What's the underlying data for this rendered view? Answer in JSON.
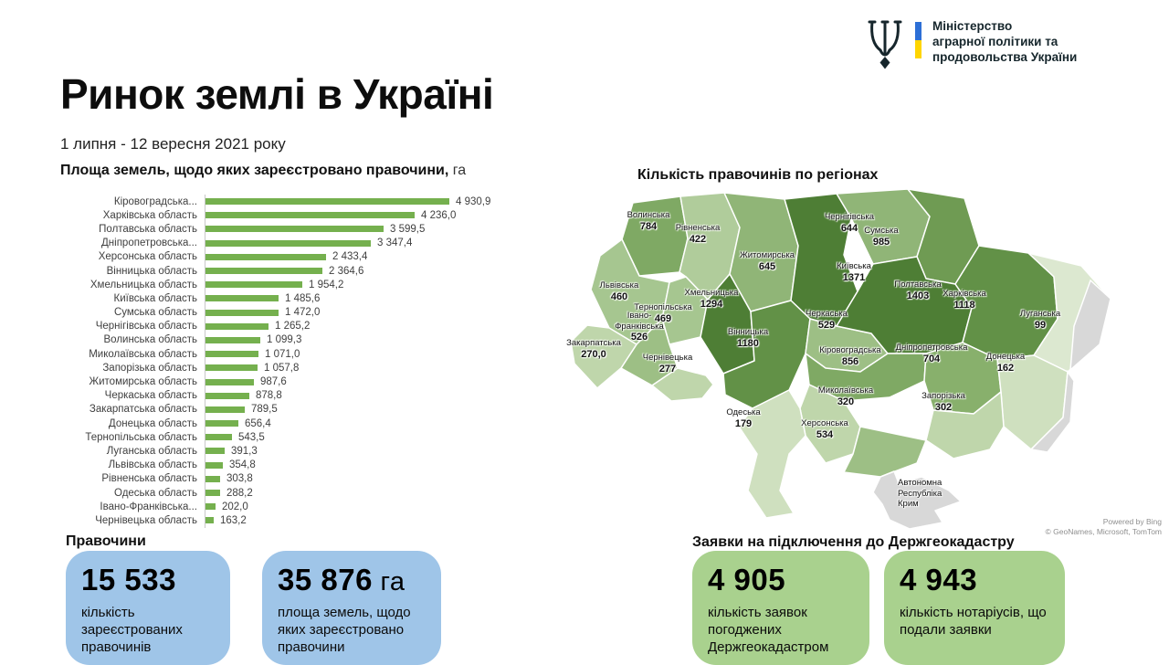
{
  "logo": {
    "ministry_line1": "Міністерство",
    "ministry_line2": "аграрної політики та",
    "ministry_line3": "продовольства України"
  },
  "header": {
    "title": "Ринок землі в Україні",
    "subtitle": "1 липня - 12 вересня 2021 року"
  },
  "bar_section": {
    "title": "Площа земель, щодо яких зареєстровано правочини,",
    "unit": " га"
  },
  "map_section": {
    "title": "Кількість правочинів по регіонах"
  },
  "attribution": {
    "line1": "Powered by Bing",
    "line2": "© GeoNames, Microsoft, TomTom"
  },
  "chart_data": [
    {
      "type": "bar",
      "orientation": "horizontal",
      "title": "Площа земель, щодо яких зареєстровано правочини, га",
      "categories": [
        "Кіровоградська...",
        "Харківська область",
        "Полтавська область",
        "Дніпропетровська...",
        "Херсонська область",
        "Вінницька область",
        "Хмельницька область",
        "Київська область",
        "Сумська область",
        "Чернігівська область",
        "Волинська область",
        "Миколаївська область",
        "Запорізька область",
        "Житомирська область",
        "Черкаська область",
        "Закарпатська область",
        "Донецька область",
        "Тернопільська область",
        "Луганська область",
        "Львівська область",
        "Рівненська область",
        "Одеська область",
        "Івано-Франківська...",
        "Чернівецька область"
      ],
      "values": [
        4930.9,
        4236.0,
        3599.5,
        3347.4,
        2433.4,
        2364.6,
        1954.2,
        1485.6,
        1472.0,
        1265.2,
        1099.3,
        1071.0,
        1057.8,
        987.6,
        878.8,
        789.5,
        656.4,
        543.5,
        391.3,
        354.8,
        303.8,
        288.2,
        202.0,
        163.2
      ],
      "value_labels": [
        "4 930,9",
        "4 236,0",
        "3 599,5",
        "3 347,4",
        "2 433,4",
        "2 364,6",
        "1 954,2",
        "1 485,6",
        "1 472,0",
        "1 265,2",
        "1 099,3",
        "1 071,0",
        "1 057,8",
        "987,6",
        "878,8",
        "789,5",
        "656,4",
        "543,5",
        "391,3",
        "354,8",
        "303,8",
        "288,2",
        "202,0",
        "163,2"
      ],
      "xlim": [
        0,
        5200
      ],
      "bar_color": "#75b04e"
    },
    {
      "type": "heatmap",
      "subtype": "choropleth-map",
      "title": "Кількість правочинів по регіонах",
      "regions": [
        {
          "name": "Волинська",
          "value": 784,
          "label": "784"
        },
        {
          "name": "Рівненська",
          "value": 422,
          "label": "422"
        },
        {
          "name": "Житомирська",
          "value": 645,
          "label": "645"
        },
        {
          "name": "Чернігівська",
          "value": 644,
          "label": "644"
        },
        {
          "name": "Сумська",
          "value": 985,
          "label": "985"
        },
        {
          "name": "Київська",
          "value": 1371,
          "label": "1371"
        },
        {
          "name": "Львівська",
          "value": 460,
          "label": "460"
        },
        {
          "name": "Тернопільська",
          "value": 469,
          "label": "469"
        },
        {
          "name": "Хмельницька",
          "value": 1294,
          "label": "1294"
        },
        {
          "name": "Івано-Франківська",
          "value": 526,
          "label": "526"
        },
        {
          "name": "Закарпатська",
          "value": 270,
          "label": "270,0"
        },
        {
          "name": "Чернівецька",
          "value": 277,
          "label": "277"
        },
        {
          "name": "Вінницька",
          "value": 1180,
          "label": "1180"
        },
        {
          "name": "Черкаська",
          "value": 529,
          "label": "529"
        },
        {
          "name": "Полтавська",
          "value": 1403,
          "label": "1403"
        },
        {
          "name": "Харківська",
          "value": 1118,
          "label": "1118"
        },
        {
          "name": "Луганська",
          "value": 99,
          "label": "99"
        },
        {
          "name": "Кіровоградська",
          "value": 856,
          "label": "856"
        },
        {
          "name": "Дніпропетровська",
          "value": 704,
          "label": "704"
        },
        {
          "name": "Донецька",
          "value": 162,
          "label": "162"
        },
        {
          "name": "Миколаївська",
          "value": 320,
          "label": "320"
        },
        {
          "name": "Запорізька",
          "value": 302,
          "label": "302"
        },
        {
          "name": "Одеська",
          "value": 179,
          "label": "179"
        },
        {
          "name": "Херсонська",
          "value": 534,
          "label": "534"
        },
        {
          "name": "Автономна Республіка Крим",
          "value": null,
          "label": ""
        }
      ],
      "color_scale": {
        "low": "#dce8d0",
        "high": "#4e7e35",
        "no_data": "#d8d8d8"
      },
      "legend": "none"
    }
  ],
  "stats": {
    "blue": {
      "heading": "Правочини",
      "cards": [
        {
          "number": "15 533",
          "unit": "",
          "desc": "кількість зареєстрованих правочинів"
        },
        {
          "number": "35 876",
          "unit": " га",
          "desc": "площа земель, щодо яких зареєстровано правочини"
        }
      ]
    },
    "green": {
      "heading": "Заявки на підключення до Держгеокадастру",
      "cards": [
        {
          "number": "4 905",
          "unit": "",
          "desc": "кількість заявок погоджених Держгеокадастром"
        },
        {
          "number": "4 943",
          "unit": "",
          "desc": "кількість нотаріусів, що подали заявки"
        }
      ]
    }
  },
  "colors": {
    "bar": "#75b04e",
    "card_blue": "#9fc5e8",
    "card_green": "#a9d18e",
    "flag_blue": "#2d6fd6",
    "flag_yellow": "#ffd500",
    "map_palette": [
      "#dce8d0",
      "#cfe0bf",
      "#bfd6ab",
      "#b0cc9b",
      "#a6c690",
      "#9dbf85",
      "#90b577",
      "#88b06c",
      "#7fa964",
      "#6f9b53",
      "#629147",
      "#4e7e35"
    ],
    "map_gray": "#d8d8d8"
  }
}
